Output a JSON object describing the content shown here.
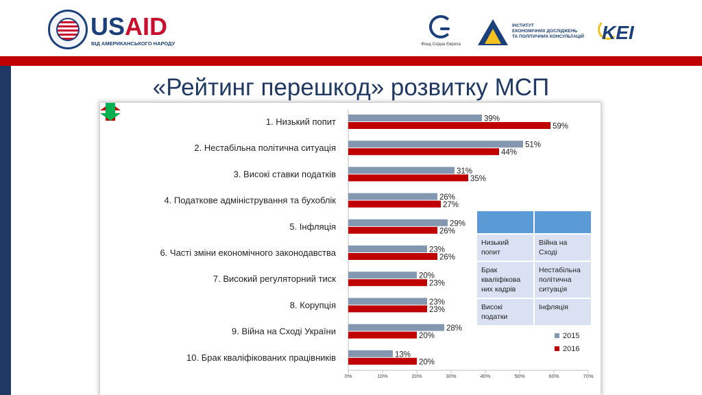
{
  "header": {
    "usaid_word_blue": "US",
    "usaid_word_red": "AID",
    "usaid_tagline": "ВІД АМЕРИКАНСЬКОГО НАРОДУ",
    "fse_caption": "Фонд Східна Європа",
    "ipk_lines": [
      "ІНСТИТУТ",
      "ЕКОНОМІЧНИХ ДОСЛІДЖЕНЬ",
      "ТА ПОЛІТИЧНИХ КОНСУЛЬТАЦІЙ"
    ],
    "kei_word": "KEI"
  },
  "slide": {
    "title": "«Рейтинг перешкод» розвитку МСП"
  },
  "colors": {
    "series_2015": "#8497b0",
    "series_2016": "#c00000",
    "header_red": "#c00000",
    "left_navy": "#1f3864",
    "table_header": "#5b9bd5",
    "table_cell": "#d9e1f2",
    "arrow_up": "#c00000",
    "arrow_down": "#00b050"
  },
  "info_table": {
    "icons": [
      "arrow-up-icon",
      "arrow-down-icon"
    ],
    "rows": [
      [
        "Низький попит",
        "Війна на Сході"
      ],
      [
        "Брак кваліфікова них кадрів",
        "Нестабільна політична ситуація"
      ],
      [
        "Високі податки",
        "Інфляція"
      ]
    ]
  },
  "chart_data": {
    "type": "bar",
    "orientation": "horizontal",
    "categories": [
      "1.  Низький попит",
      "2. Нестабільна політична ситуація",
      "3. Високі ставки податків",
      "4. Податкове адміністрування та бухоблік",
      "5. Інфляція",
      "6. Часті зміни економічного законодавства",
      "7. Високий регуляторний тиск",
      "8. Корупція",
      "9. Війна на Сході України",
      "10. Брак кваліфікованих працівників"
    ],
    "series": [
      {
        "name": "2015",
        "values": [
          39,
          51,
          31,
          26,
          29,
          23,
          20,
          23,
          28,
          13
        ]
      },
      {
        "name": "2016",
        "values": [
          59,
          44,
          35,
          27,
          26,
          26,
          23,
          23,
          20,
          20
        ]
      }
    ],
    "value_labels": [
      [
        "39%",
        "51%",
        "31%",
        "26%",
        "29%",
        "23%",
        "20%",
        "23%",
        "28%",
        "13%"
      ],
      [
        "59%",
        "44%",
        "35%",
        "27%",
        "26%",
        "26%",
        "23%",
        "23%",
        "20%",
        "20%"
      ]
    ],
    "xlim": [
      0,
      70
    ],
    "xticks": [
      "0%",
      "10%",
      "20%",
      "30%",
      "40%",
      "50%",
      "60%",
      "70%"
    ],
    "xlabel": "",
    "ylabel": "",
    "legend": {
      "position": "bottom-right",
      "entries": [
        "2015",
        "2016"
      ]
    },
    "grid": false
  }
}
